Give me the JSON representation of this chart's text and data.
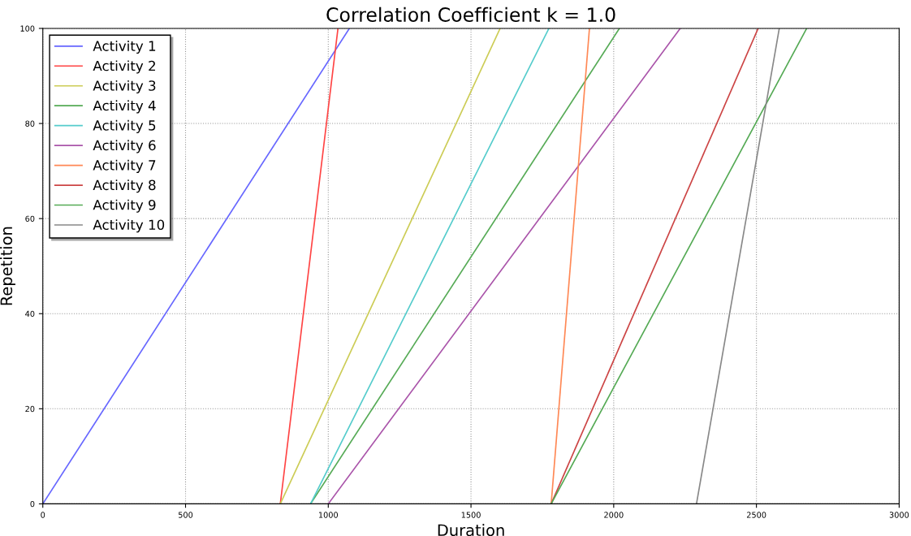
{
  "chart_data": {
    "type": "line",
    "title": "Correlation Coefficient k = 1.0",
    "xlabel": "Duration",
    "ylabel": "Repetition",
    "series": [
      {
        "name": "Activity 1",
        "color": "#6666ff",
        "x": [
          0,
          1074
        ],
        "values": [
          0,
          100
        ]
      },
      {
        "name": "Activity 2",
        "color": "#ff4444",
        "x": [
          832,
          1034
        ],
        "values": [
          0,
          100
        ]
      },
      {
        "name": "Activity 3",
        "color": "#cccc55",
        "x": [
          832,
          1602
        ],
        "values": [
          0,
          100
        ]
      },
      {
        "name": "Activity 4",
        "color": "#55aa55",
        "x": [
          938,
          2020
        ],
        "values": [
          0,
          100
        ]
      },
      {
        "name": "Activity 5",
        "color": "#55cccc",
        "x": [
          938,
          1773
        ],
        "values": [
          0,
          100
        ]
      },
      {
        "name": "Activity 6",
        "color": "#aa55aa",
        "x": [
          1000,
          2233
        ],
        "values": [
          0,
          100
        ]
      },
      {
        "name": "Activity 7",
        "color": "#ff8855",
        "x": [
          1781,
          1915
        ],
        "values": [
          0,
          100
        ]
      },
      {
        "name": "Activity 8",
        "color": "#cc4444",
        "x": [
          1781,
          2506
        ],
        "values": [
          0,
          100
        ]
      },
      {
        "name": "Activity 9",
        "color": "#55aa55",
        "x": [
          1781,
          2676
        ],
        "values": [
          0,
          100
        ]
      },
      {
        "name": "Activity 10",
        "color": "#888888",
        "x": [
          2290,
          2580
        ],
        "values": [
          0,
          100
        ]
      }
    ],
    "xlim": [
      0,
      3000
    ],
    "xticks": [
      0,
      500,
      1000,
      1500,
      2000,
      2500,
      3000
    ],
    "ylim": [
      0,
      100
    ],
    "yticks": [
      0,
      20,
      40,
      60,
      80,
      100
    ],
    "grid": true,
    "legend": "top left",
    "marker": "none",
    "line_style": "solid"
  }
}
